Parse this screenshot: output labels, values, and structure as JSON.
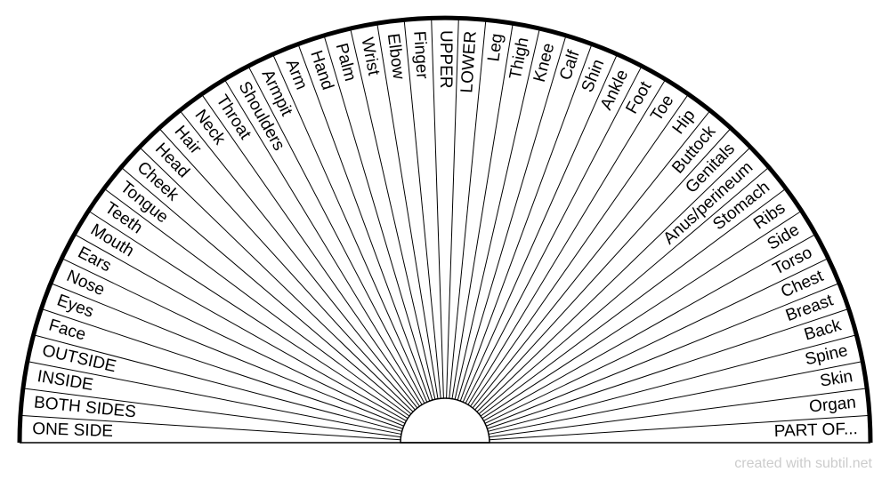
{
  "labels": [
    "ONE SIDE",
    "BOTH SIDES",
    "INSIDE",
    "OUTSIDE",
    "Face",
    "Eyes",
    "Nose",
    "Ears",
    "Mouth",
    "Teeth",
    "Tongue",
    "Cheek",
    "Head",
    "Hair",
    "Neck",
    "Throat",
    "Shoulders",
    "Armpit",
    "Arm",
    "Hand",
    "Palm",
    "Wrist",
    "Elbow",
    "Finger",
    "UPPER",
    "LOWER",
    "Leg",
    "Thigh",
    "Knee",
    "Calf",
    "Shin",
    "Ankle",
    "Foot",
    "Toe",
    "Hip",
    "Buttock",
    "Genitals",
    "Anus/perineum",
    "Stomach",
    "Ribs",
    "Side",
    "Torso",
    "Chest",
    "Breast",
    "Back",
    "Spine",
    "Skin",
    "Organ",
    "PART OF..."
  ],
  "footer": "created with subtil.net"
}
